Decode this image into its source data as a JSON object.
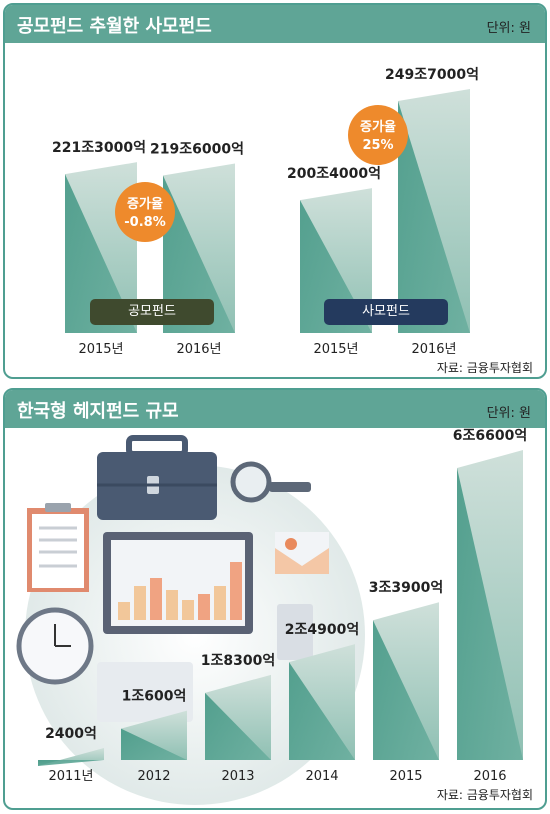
{
  "panel1": {
    "title": "공모펀드 추월한 사모펀드",
    "unit": "단위: 원",
    "source": "자료: 금융투자협회",
    "groups": [
      {
        "label": "공모펀드",
        "color": "#3f4a2e"
      },
      {
        "label": "사모펀드",
        "color": "#243a5e"
      }
    ],
    "badges": [
      {
        "title": "증가율",
        "value": "-0.8%"
      },
      {
        "title": "증가율",
        "value": "25%"
      }
    ]
  },
  "panel2": {
    "title": "한국형 헤지펀드 규모",
    "unit": "단위: 원",
    "source": "자료: 금융투자협회"
  },
  "chart_data": [
    {
      "type": "bar",
      "title": "공모펀드 추월한 사모펀드",
      "categories": [
        "2015년",
        "2016년",
        "2015년",
        "2016년"
      ],
      "groups": [
        "공모펀드",
        "공모펀드",
        "사모펀드",
        "사모펀드"
      ],
      "values": [
        221.3,
        219.6,
        200.4,
        249.7
      ],
      "value_unit": "조원",
      "data_labels": [
        "221조3000억",
        "219조6000억",
        "200조4000억",
        "249조7000억"
      ],
      "ylim": [
        0,
        260
      ],
      "grid": false
    },
    {
      "type": "bar",
      "title": "한국형 헤지펀드 규모",
      "categories": [
        "2011년",
        "2012",
        "2013",
        "2014",
        "2015",
        "2016"
      ],
      "values": [
        0.24,
        1.06,
        1.83,
        2.49,
        3.39,
        6.66
      ],
      "value_unit": "조원",
      "data_labels": [
        "2400억",
        "1조600억",
        "1조8300억",
        "2조4900억",
        "3조3900억",
        "6조6600억"
      ],
      "ylim": [
        0,
        6.66
      ],
      "grid": false
    }
  ]
}
